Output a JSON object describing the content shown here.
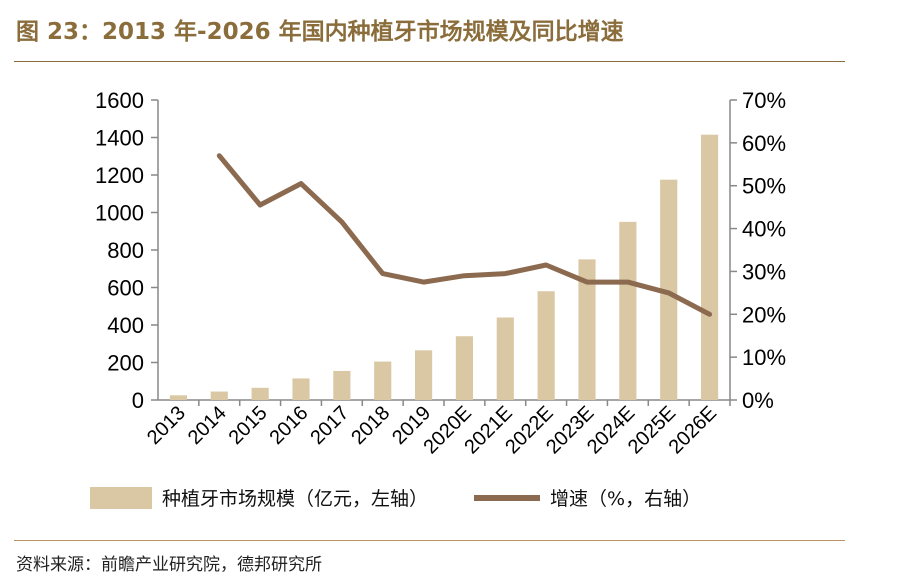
{
  "header": {
    "title": "图 23：2013 年-2026 年国内种植牙市场规模及同比增速"
  },
  "footer": {
    "source": "资料来源：前瞻产业研究院，德邦研究所"
  },
  "colors": {
    "bar": "#d9c8a3",
    "line": "#8c6a4f",
    "title": "#8a6d3b"
  },
  "chart_data": {
    "type": "bar",
    "title": "",
    "categories": [
      "2013",
      "2014",
      "2015",
      "2016",
      "2017",
      "2018",
      "2019",
      "2020E",
      "2021E",
      "2022E",
      "2023E",
      "2024E",
      "2025E",
      "2026E"
    ],
    "series": [
      {
        "name": "种植牙市场规模（亿元，左轴）",
        "type": "bar",
        "axis": "left",
        "values": [
          25,
          45,
          65,
          115,
          155,
          205,
          265,
          340,
          440,
          580,
          750,
          950,
          1175,
          1415
        ]
      },
      {
        "name": "增速（%，右轴）",
        "type": "line",
        "axis": "right",
        "values": [
          null,
          57,
          45.5,
          50.5,
          41.5,
          29.5,
          27.5,
          29,
          29.5,
          31.5,
          27.5,
          27.5,
          25,
          20
        ]
      }
    ],
    "yleft": {
      "lim": [
        0,
        1600
      ],
      "ticks": [
        "0",
        "200",
        "400",
        "600",
        "800",
        "1000",
        "1200",
        "1400",
        "1600"
      ]
    },
    "yright": {
      "lim": [
        0,
        70
      ],
      "ticks": [
        "0%",
        "10%",
        "20%",
        "30%",
        "40%",
        "50%",
        "60%",
        "70%"
      ]
    },
    "grid": false,
    "legend": "bottom"
  }
}
